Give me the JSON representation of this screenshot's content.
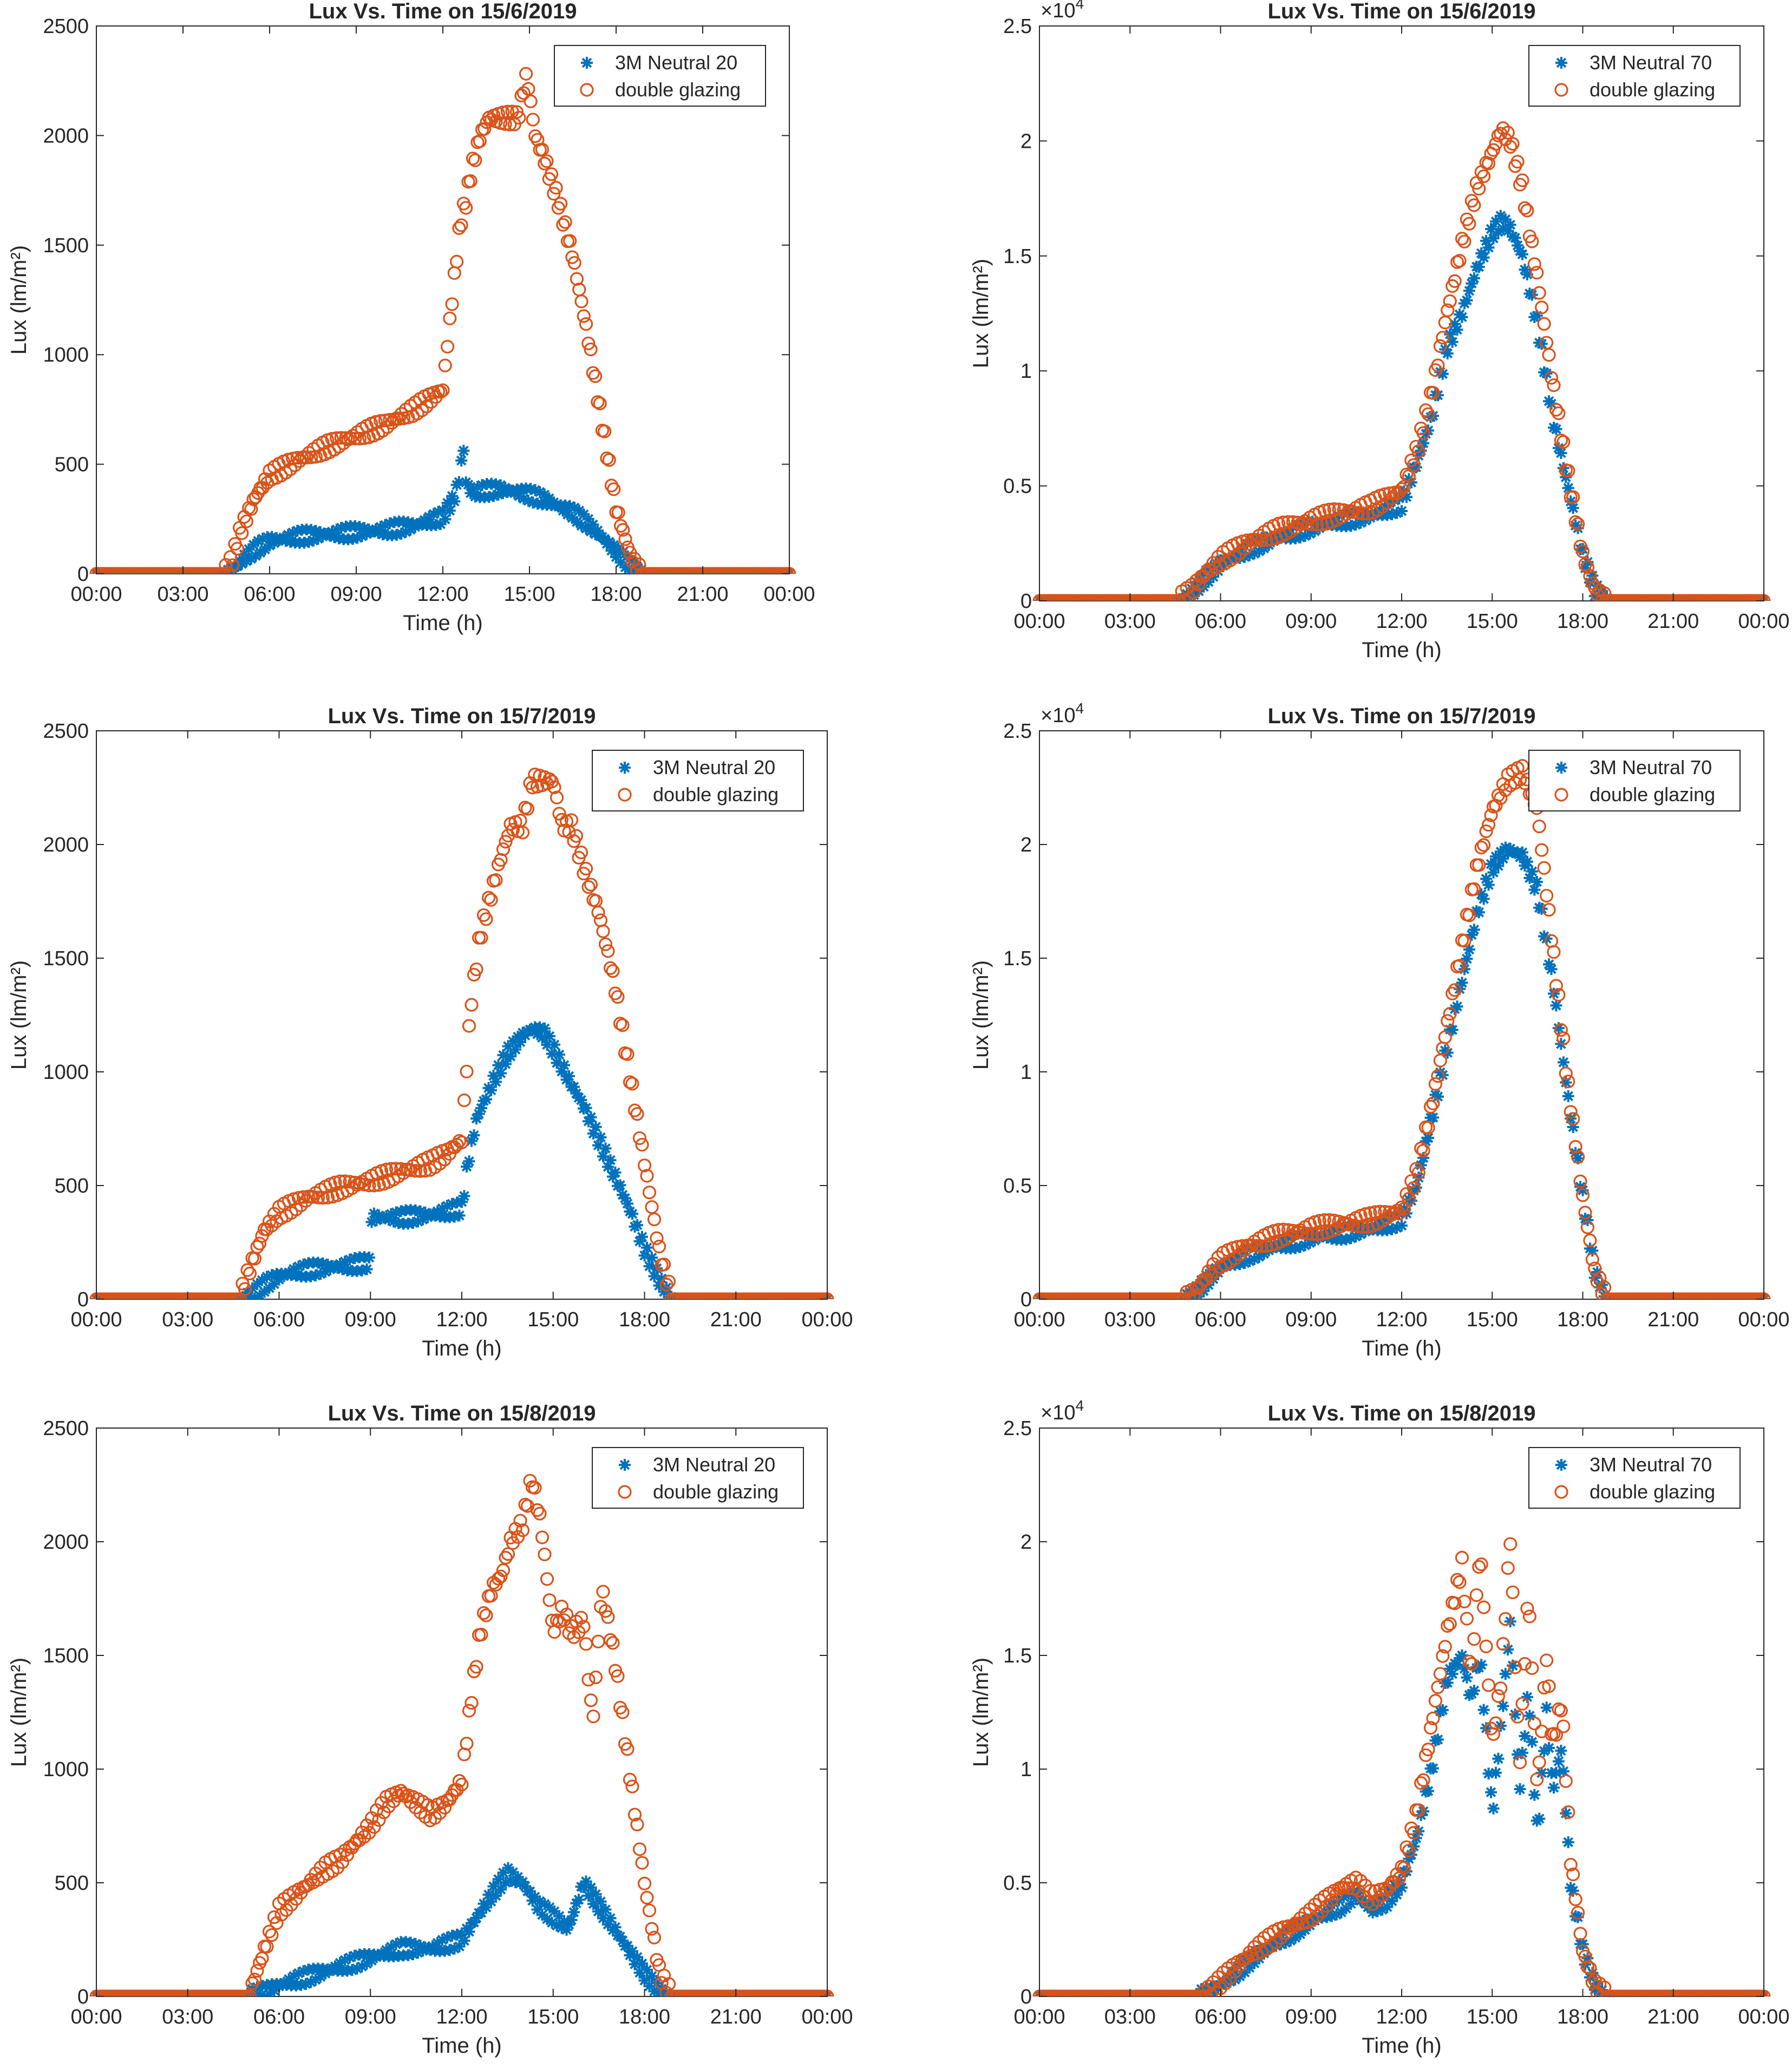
{
  "figure_title": "Lux vs time panels",
  "colors": {
    "series_a": "#0072BD",
    "series_b": "#D95319",
    "axis": "#262626"
  },
  "chart_data": [
    {
      "type": "scatter",
      "title": "Lux Vs. Time on 15/6/2019",
      "xlabel": "Time (h)",
      "ylabel": "Lux (lm/m²)",
      "ylim": [
        0,
        2500
      ],
      "yticks": [
        0,
        500,
        1000,
        1500,
        2000,
        2500
      ],
      "ytick_labels": [
        "0",
        "500",
        "1000",
        "1500",
        "2000",
        "2500"
      ],
      "exponent_label": "",
      "xlim": [
        0,
        24
      ],
      "xticks": [
        0,
        3,
        6,
        9,
        12,
        15,
        18,
        21,
        24
      ],
      "xtick_labels": [
        "00:00",
        "03:00",
        "06:00",
        "09:00",
        "12:00",
        "15:00",
        "18:00",
        "21:00",
        "00:00"
      ],
      "legend_position": "top-right",
      "series": [
        {
          "name": "3M Neutral 20",
          "marker": "asterisk",
          "x": [
            0,
            4.5,
            4.8,
            5.2,
            5.6,
            6.0,
            7.0,
            8.0,
            9.0,
            10.0,
            11.0,
            12.0,
            12.4,
            12.6,
            12.7,
            12.8,
            13.0,
            13.5,
            14.0,
            14.5,
            15.0,
            15.5,
            16.0,
            16.5,
            17.0,
            17.5,
            18.0,
            18.4,
            18.7,
            19.0,
            24
          ],
          "y": [
            0,
            0,
            30,
            80,
            120,
            150,
            170,
            180,
            190,
            200,
            220,
            260,
            350,
            450,
            600,
            420,
            370,
            380,
            385,
            375,
            360,
            340,
            310,
            280,
            230,
            170,
            100,
            50,
            15,
            0,
            0
          ]
        },
        {
          "name": "double glazing",
          "marker": "circle",
          "x": [
            0,
            4.4,
            4.7,
            5.0,
            5.5,
            6.0,
            7.0,
            8.0,
            9.0,
            10.0,
            11.0,
            12.0,
            12.2,
            12.4,
            12.6,
            12.8,
            13.0,
            13.3,
            13.6,
            14.0,
            14.3,
            14.6,
            14.9,
            15.2,
            15.5,
            16.0,
            16.5,
            17.0,
            17.5,
            18.0,
            18.5,
            18.9,
            24
          ],
          "y": [
            0,
            0,
            60,
            200,
            350,
            450,
            520,
            580,
            630,
            680,
            750,
            840,
            1100,
            1350,
            1600,
            1700,
            1850,
            2000,
            2080,
            2080,
            2080,
            2080,
            2280,
            2000,
            1900,
            1700,
            1450,
            1100,
            700,
            300,
            80,
            0,
            0
          ]
        }
      ]
    },
    {
      "type": "scatter",
      "title": "Lux Vs. Time on 15/6/2019",
      "xlabel": "Time (h)",
      "ylabel": "Lux (lm/m²)",
      "ylim": [
        0,
        25000
      ],
      "yticks": [
        0,
        5000,
        10000,
        15000,
        20000,
        25000
      ],
      "ytick_labels": [
        "0",
        "0.5",
        "1",
        "1.5",
        "2",
        "2.5"
      ],
      "exponent_label": "×10",
      "exponent_power": "4",
      "xlim": [
        0,
        24
      ],
      "xticks": [
        0,
        3,
        6,
        9,
        12,
        15,
        18,
        21,
        24
      ],
      "xtick_labels": [
        "00:00",
        "03:00",
        "06:00",
        "09:00",
        "12:00",
        "15:00",
        "18:00",
        "21:00",
        "00:00"
      ],
      "legend_position": "top-right",
      "series": [
        {
          "name": "3M Neutral 70",
          "marker": "asterisk",
          "x": [
            0,
            4.6,
            5.0,
            5.5,
            6.0,
            7.0,
            8.0,
            9.0,
            10.0,
            11.0,
            12.0,
            12.5,
            13.0,
            13.5,
            14.0,
            14.5,
            15.0,
            15.3,
            15.6,
            16.0,
            16.5,
            17.0,
            17.5,
            18.0,
            18.4,
            18.8,
            24
          ],
          "y": [
            0,
            0,
            300,
            1000,
            1600,
            2300,
            2800,
            3200,
            3500,
            3700,
            4200,
            6000,
            8000,
            11000,
            12500,
            14500,
            16000,
            16500,
            16200,
            15000,
            12000,
            8000,
            5000,
            2000,
            500,
            0,
            0
          ]
        },
        {
          "name": "double glazing",
          "marker": "circle",
          "x": [
            0,
            4.6,
            5.0,
            5.5,
            6.0,
            7.0,
            8.0,
            9.0,
            10.0,
            11.0,
            12.0,
            12.5,
            13.0,
            13.5,
            14.0,
            14.5,
            15.0,
            15.3,
            15.6,
            16.0,
            16.5,
            17.0,
            17.5,
            18.0,
            18.4,
            18.8,
            24
          ],
          "y": [
            0,
            0,
            400,
            1200,
            1800,
            2600,
            3100,
            3500,
            3800,
            4100,
            4800,
            6500,
            9000,
            12500,
            15500,
            18000,
            19500,
            20500,
            20000,
            18000,
            14000,
            9500,
            5500,
            2000,
            500,
            0,
            0
          ]
        }
      ]
    },
    {
      "type": "scatter",
      "title": "Lux Vs. Time on 15/7/2019",
      "xlabel": "Time (h)",
      "ylabel": "Lux (lm/m²)",
      "ylim": [
        0,
        2500
      ],
      "yticks": [
        0,
        500,
        1000,
        1500,
        2000,
        2500
      ],
      "ytick_labels": [
        "0",
        "500",
        "1000",
        "1500",
        "2000",
        "2500"
      ],
      "exponent_label": "",
      "xlim": [
        0,
        24
      ],
      "xticks": [
        0,
        3,
        6,
        9,
        12,
        15,
        18,
        21,
        24
      ],
      "xtick_labels": [
        "00:00",
        "03:00",
        "06:00",
        "09:00",
        "12:00",
        "15:00",
        "18:00",
        "21:00",
        "00:00"
      ],
      "legend_position": "top-right",
      "series": [
        {
          "name": "3M Neutral 20",
          "marker": "asterisk",
          "x": [
            0,
            4.8,
            5.2,
            5.6,
            6.0,
            6.5,
            7.0,
            8.0,
            9.0,
            9.01,
            10.0,
            11.0,
            12.0,
            12.2,
            12.5,
            13.0,
            13.5,
            14.0,
            14.3,
            14.7,
            15.0,
            15.5,
            16.0,
            16.5,
            17.0,
            17.5,
            18.0,
            18.5,
            18.9,
            24
          ],
          "y": [
            0,
            0,
            30,
            70,
            100,
            120,
            130,
            145,
            160,
            360,
            360,
            370,
            400,
            600,
            800,
            950,
            1080,
            1160,
            1190,
            1170,
            1100,
            970,
            850,
            700,
            550,
            400,
            220,
            80,
            0,
            0
          ]
        },
        {
          "name": "double glazing",
          "marker": "circle",
          "x": [
            0,
            4.7,
            5.0,
            5.5,
            6.0,
            7.0,
            8.0,
            9.0,
            10.0,
            11.0,
            11.5,
            12.0,
            12.3,
            12.6,
            13.0,
            13.3,
            13.6,
            14.0,
            14.3,
            14.6,
            15.0,
            15.3,
            15.6,
            16.0,
            16.5,
            17.0,
            17.5,
            18.0,
            18.5,
            18.9,
            24
          ],
          "y": [
            0,
            0,
            120,
            300,
            380,
            450,
            490,
            520,
            560,
            600,
            640,
            700,
            1300,
            1600,
            1800,
            1950,
            2080,
            2080,
            2280,
            2280,
            2280,
            2080,
            2080,
            1900,
            1700,
            1400,
            1000,
            600,
            200,
            0,
            0
          ]
        }
      ]
    },
    {
      "type": "scatter",
      "title": "Lux Vs. Time on 15/7/2019",
      "xlabel": "Time (h)",
      "ylabel": "Lux (lm/m²)",
      "ylim": [
        0,
        25000
      ],
      "yticks": [
        0,
        5000,
        10000,
        15000,
        20000,
        25000
      ],
      "ytick_labels": [
        "0",
        "0.5",
        "1",
        "1.5",
        "2",
        "2.5"
      ],
      "exponent_label": "×10",
      "exponent_power": "4",
      "xlim": [
        0,
        24
      ],
      "xticks": [
        0,
        3,
        6,
        9,
        12,
        15,
        18,
        21,
        24
      ],
      "xtick_labels": [
        "00:00",
        "03:00",
        "06:00",
        "09:00",
        "12:00",
        "15:00",
        "18:00",
        "21:00",
        "00:00"
      ],
      "legend_position": "top-right",
      "series": [
        {
          "name": "3M Neutral 70",
          "marker": "asterisk",
          "x": [
            0,
            4.8,
            5.2,
            5.6,
            6.0,
            7.0,
            8.0,
            9.0,
            10.0,
            11.0,
            12.0,
            12.5,
            13.0,
            13.5,
            14.0,
            14.5,
            15.0,
            15.5,
            16.0,
            16.5,
            17.0,
            17.5,
            18.0,
            18.4,
            18.8,
            24
          ],
          "y": [
            0,
            0,
            300,
            900,
            1400,
            2000,
            2400,
            2700,
            2900,
            3100,
            3500,
            5000,
            8000,
            11000,
            14000,
            17000,
            19000,
            19800,
            19500,
            18000,
            14000,
            9000,
            4500,
            1200,
            0,
            0
          ]
        },
        {
          "name": "double glazing",
          "marker": "circle",
          "x": [
            0,
            4.8,
            5.2,
            5.6,
            6.0,
            7.0,
            8.0,
            9.0,
            10.0,
            11.0,
            12.0,
            12.5,
            13.0,
            13.5,
            14.0,
            14.5,
            15.0,
            15.5,
            16.0,
            16.5,
            17.0,
            17.5,
            18.0,
            18.4,
            18.8,
            24
          ],
          "y": [
            0,
            0,
            400,
            1100,
            1700,
            2400,
            2800,
            3100,
            3300,
            3500,
            3900,
            5500,
            8500,
            12000,
            15500,
            19000,
            21500,
            22800,
            23200,
            21500,
            15500,
            9500,
            4500,
            1200,
            0,
            0
          ]
        }
      ]
    },
    {
      "type": "scatter",
      "title": "Lux Vs. Time on 15/8/2019",
      "xlabel": "Time (h)",
      "ylabel": "Lux (lm/m²)",
      "ylim": [
        0,
        2500
      ],
      "yticks": [
        0,
        500,
        1000,
        1500,
        2000,
        2500
      ],
      "ytick_labels": [
        "0",
        "500",
        "1000",
        "1500",
        "2000",
        "2500"
      ],
      "exponent_label": "",
      "xlim": [
        0,
        24
      ],
      "xticks": [
        0,
        3,
        6,
        9,
        12,
        15,
        18,
        21,
        24
      ],
      "xtick_labels": [
        "00:00",
        "03:00",
        "06:00",
        "09:00",
        "12:00",
        "15:00",
        "18:00",
        "21:00",
        "00:00"
      ],
      "legend_position": "top-right",
      "series": [
        {
          "name": "3M Neutral 20",
          "marker": "asterisk",
          "x": [
            0,
            5.0,
            5.5,
            6.0,
            7.0,
            8.0,
            9.0,
            10.0,
            11.0,
            12.0,
            12.5,
            13.0,
            13.5,
            14.0,
            14.5,
            15.0,
            15.5,
            16.0,
            16.5,
            17.0,
            17.5,
            18.0,
            18.5,
            18.9,
            24
          ],
          "y": [
            0,
            0,
            20,
            50,
            90,
            130,
            170,
            210,
            210,
            250,
            350,
            450,
            540,
            500,
            400,
            350,
            300,
            500,
            400,
            300,
            200,
            100,
            20,
            0,
            0
          ]
        },
        {
          "name": "double glazing",
          "marker": "circle",
          "x": [
            0,
            5.0,
            5.5,
            6.0,
            7.0,
            7.5,
            8.0,
            9.0,
            9.5,
            10.0,
            10.5,
            11.0,
            11.5,
            12.0,
            12.3,
            12.6,
            13.0,
            13.3,
            13.6,
            14.0,
            14.3,
            14.6,
            15.0,
            15.3,
            15.6,
            16.0,
            16.3,
            16.6,
            17.0,
            17.5,
            18.0,
            18.5,
            18.9,
            24
          ],
          "y": [
            0,
            0,
            200,
            380,
            500,
            560,
            600,
            750,
            850,
            900,
            850,
            800,
            850,
            950,
            1300,
            1600,
            1800,
            1850,
            2000,
            2080,
            2280,
            2080,
            1600,
            1700,
            1600,
            1650,
            1200,
            1800,
            1500,
            1000,
            500,
            100,
            0,
            0
          ]
        }
      ]
    },
    {
      "type": "scatter",
      "title": "Lux Vs. Time on 15/8/2019",
      "xlabel": "Time (h)",
      "ylabel": "Lux (lm/m²)",
      "ylim": [
        0,
        25000
      ],
      "yticks": [
        0,
        5000,
        10000,
        15000,
        20000,
        25000
      ],
      "ytick_labels": [
        "0",
        "0.5",
        "1",
        "1.5",
        "2",
        "2.5"
      ],
      "exponent_label": "×10",
      "exponent_power": "4",
      "xlim": [
        0,
        24
      ],
      "xticks": [
        0,
        3,
        6,
        9,
        12,
        15,
        18,
        21,
        24
      ],
      "xtick_labels": [
        "00:00",
        "03:00",
        "06:00",
        "09:00",
        "12:00",
        "15:00",
        "18:00",
        "21:00",
        "00:00"
      ],
      "legend_position": "top-right",
      "series": [
        {
          "name": "3M Neutral 70",
          "marker": "asterisk",
          "x": [
            0,
            5.3,
            5.8,
            6.5,
            7.0,
            8.0,
            9.0,
            10.0,
            10.5,
            11.0,
            11.5,
            12.0,
            12.5,
            13.0,
            13.5,
            14.0,
            14.3,
            14.6,
            15.0,
            15.3,
            15.6,
            15.9,
            16.2,
            16.5,
            16.8,
            17.0,
            17.3,
            17.6,
            18.0,
            18.4,
            18.8,
            24
          ],
          "y": [
            0,
            0,
            300,
            1000,
            1600,
            2500,
            3300,
            4000,
            4500,
            3800,
            4200,
            5000,
            7000,
            10000,
            14000,
            15000,
            13000,
            15000,
            8000,
            12000,
            16500,
            9000,
            13500,
            7000,
            12500,
            9000,
            11000,
            5000,
            2000,
            500,
            0,
            0
          ]
        },
        {
          "name": "double glazing",
          "marker": "circle",
          "x": [
            0,
            5.3,
            5.8,
            6.5,
            7.0,
            8.0,
            9.0,
            10.0,
            10.5,
            11.0,
            11.5,
            12.0,
            12.5,
            13.0,
            13.5,
            14.0,
            14.3,
            14.6,
            15.0,
            15.3,
            15.6,
            15.9,
            16.2,
            16.5,
            16.8,
            17.0,
            17.3,
            17.6,
            18.0,
            18.4,
            18.8,
            24
          ],
          "y": [
            0,
            0,
            400,
            1300,
            1900,
            2800,
            3600,
            4800,
            5000,
            4300,
            4700,
            5500,
            8000,
            12000,
            16000,
            19000,
            14000,
            19800,
            11000,
            14000,
            20200,
            10000,
            18000,
            9000,
            15000,
            11000,
            13000,
            6000,
            2000,
            500,
            0,
            0
          ]
        }
      ]
    }
  ]
}
